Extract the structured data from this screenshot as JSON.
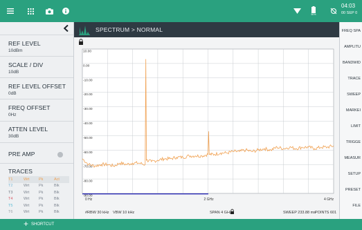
{
  "topbar": {
    "clock_time": "04:03",
    "clock_date": "00 SEP 0",
    "battery_label": "50%"
  },
  "titlebar": {
    "path": "SPECTRUM  >  NORMAL"
  },
  "left_panel": {
    "items": [
      {
        "label": "REF LEVEL",
        "value": "10dBm"
      },
      {
        "label": "SCALE / DIV",
        "value": "10dB"
      },
      {
        "label": "REF LEVEL OFFSET",
        "value": "0dB"
      },
      {
        "label": "FREQ OFFSET",
        "value": "0Hz"
      },
      {
        "label": "ATTEN LEVEL",
        "value": "30dB"
      }
    ],
    "pre_amp_label": "PRE AMP",
    "traces_label": "TRACES",
    "traces": [
      {
        "id": "T1",
        "mode": "Wrt",
        "det": "Pk",
        "state": "Act"
      },
      {
        "id": "T2",
        "mode": "Wrt",
        "det": "Pk",
        "state": "Blk"
      },
      {
        "id": "T3",
        "mode": "Wrt",
        "det": "Pk",
        "state": "Blk"
      },
      {
        "id": "T4",
        "mode": "Wrt",
        "det": "Pk",
        "state": "Blk"
      },
      {
        "id": "T5",
        "mode": "Wrt",
        "det": "Pk",
        "state": "Blk"
      },
      {
        "id": "T6",
        "mode": "Wrt",
        "det": "Pk",
        "state": "Blk"
      }
    ]
  },
  "right_panel": {
    "items": [
      "FREQ SPA",
      "AMPLITU",
      "BANDWID",
      "TRACE",
      "SWEEP",
      "MARKEI",
      "LIMIT",
      "TRIGGE",
      "MEASUR",
      "SETUP",
      "PRESET",
      "FILE"
    ]
  },
  "plot": {
    "y_ticks": [
      "10.00",
      "0.00",
      "-10.00",
      "-20.00",
      "-30.00",
      "-40.00",
      "-50.00",
      "-60.00",
      "-70.00",
      "-80.00",
      "-90.00"
    ],
    "x_ticks": [
      "0 Hz",
      "2 GHz",
      "4 GHz"
    ],
    "rbw": "#RBW 30 kHz",
    "vbw": "VBW 10 kHz",
    "span": "SPAN 4 GHz",
    "sweep": "SWEEP  233.88 ms",
    "points": "POINTS 601"
  },
  "bottombar": {
    "shortcut_label": "SHORTCUT"
  },
  "colors": {
    "accent": "#2aa17f",
    "trace": "#f0a050",
    "trace_colors": [
      "#f0a050",
      "#7ab8d8",
      "#6f7880",
      "#d85a66",
      "#5bbad5",
      "#9aa0a6"
    ]
  },
  "chart_data": {
    "type": "line",
    "title": "",
    "xlabel": "",
    "ylabel": "",
    "xlim": [
      0,
      4
    ],
    "ylim": [
      -90,
      10
    ],
    "grid": true,
    "series": [
      {
        "x": [
          0,
          0.1,
          0.2,
          0.3,
          0.4,
          0.5,
          0.6,
          0.7,
          0.8,
          0.9,
          1.0,
          1.01,
          1.02,
          1.1,
          1.2,
          1.3,
          1.4,
          1.5,
          1.6,
          1.7,
          1.8,
          1.9,
          2.0,
          2.01,
          2.02,
          2.1,
          2.2,
          2.3,
          2.4,
          2.5,
          2.6,
          2.7,
          2.8,
          2.9,
          3.0,
          3.1,
          3.2,
          3.3,
          3.4,
          3.5,
          3.6,
          3.7,
          3.8,
          3.9,
          4.0
        ],
        "y": [
          -66,
          -70,
          -71,
          -70,
          -70,
          -71,
          -69,
          -70,
          -69,
          -69,
          -70,
          3,
          -67,
          -68,
          -67,
          -66,
          -66,
          -65,
          -65,
          -64,
          -64,
          -64,
          -63,
          -47,
          -63,
          -63,
          -62,
          -62,
          -61,
          -61,
          -60,
          -61,
          -60,
          -59,
          -60,
          -58,
          -59,
          -58,
          -59,
          -58,
          -58,
          -59,
          -58,
          -58,
          -57
        ]
      }
    ]
  }
}
